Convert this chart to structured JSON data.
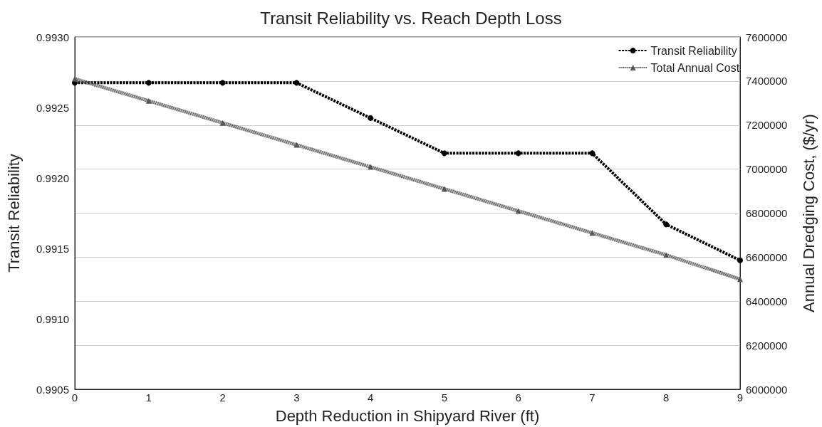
{
  "chart_data": {
    "type": "line",
    "title": "Transit Reliability vs. Reach Depth Loss",
    "xlabel": "Depth Reduction in Shipyard River (ft)",
    "ylabel": "Transit Reliability",
    "y2label": "Annual Dredging Cost, ($/yr)",
    "x": [
      0,
      1,
      2,
      3,
      4,
      5,
      6,
      7,
      8,
      9
    ],
    "series": [
      {
        "name": "Transit Reliability",
        "color": "#000000",
        "values": [
          0.992675,
          0.992675,
          0.992675,
          0.992675,
          0.992425,
          0.992175,
          0.992175,
          0.992175,
          0.99167,
          0.991415
        ],
        "marker": "circle",
        "line_style": "dashed"
      },
      {
        "name": "Total Annual Cost",
        "color": "#555555",
        "axis": "y2",
        "values": [
          7410000,
          7310000,
          7210000,
          7110000,
          7010000,
          6910000,
          6810000,
          6710000,
          6610000,
          6500000
        ],
        "marker": "triangle",
        "line_style": "dotted"
      }
    ],
    "xlim": [
      0,
      9
    ],
    "xticks": [
      0,
      1,
      2,
      3,
      4,
      5,
      6,
      7,
      8,
      9
    ],
    "ylim": [
      0.9905,
      0.993
    ],
    "yticks": [
      {
        "value": 0.9905,
        "label": "0.9905"
      },
      {
        "value": 0.991,
        "label": "0.9910"
      },
      {
        "value": 0.9915,
        "label": "0.9915"
      },
      {
        "value": 0.992,
        "label": "0.9920"
      },
      {
        "value": 0.9925,
        "label": "0.9925"
      },
      {
        "value": 0.993,
        "label": "0.9930"
      }
    ],
    "y2lim": [
      6000000,
      7600000
    ],
    "y2ticks": [
      6000000,
      6200000,
      6400000,
      6600000,
      6800000,
      7000000,
      7200000,
      7400000,
      7600000
    ],
    "grid": "y",
    "legend": "top right"
  }
}
